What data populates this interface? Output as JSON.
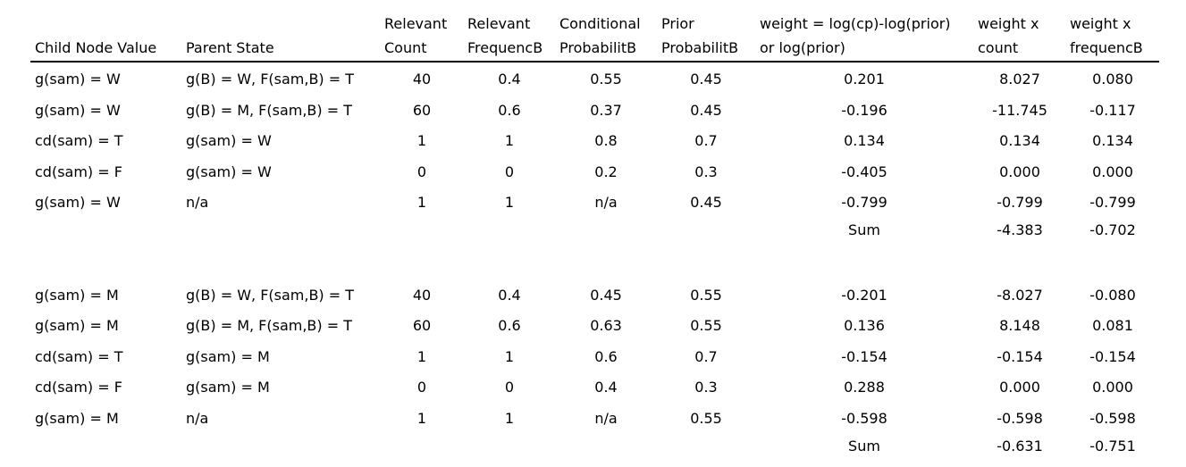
{
  "headers": {
    "child": [
      "",
      "Child Node Value"
    ],
    "parent": [
      "",
      "Parent State"
    ],
    "count": [
      "Relevant",
      "Count"
    ],
    "freq": [
      "Relevant",
      "FrequencB"
    ],
    "cp": [
      "Conditional",
      "ProbabilitB"
    ],
    "prior": [
      "Prior",
      "ProbabilitB"
    ],
    "weight": [
      "weight = log(cp)-log(prior)",
      "or log(prior)"
    ],
    "wc": [
      "weight x",
      "count"
    ],
    "wf": [
      "weight x",
      "frequencB"
    ]
  },
  "rows": [
    {
      "child": "g(sam) = W",
      "parent": "g(B) = W, F(sam,B) = T",
      "count": "40",
      "freq": "0.4",
      "cp": "0.55",
      "prior": "0.45",
      "weight": "0.201",
      "wc": "8.027",
      "wf": "0.080"
    },
    {
      "child": "g(sam) = W",
      "parent": "g(B) = M, F(sam,B) = T",
      "count": "60",
      "freq": "0.6",
      "cp": "0.37",
      "prior": "0.45",
      "weight": "-0.196",
      "wc": "-11.745",
      "wf": "-0.117"
    },
    {
      "child": "cd(sam) = T",
      "parent": "g(sam) = W",
      "count": "1",
      "freq": "1",
      "cp": "0.8",
      "prior": "0.7",
      "weight": "0.134",
      "wc": "0.134",
      "wf": "0.134"
    },
    {
      "child": "cd(sam) = F",
      "parent": "g(sam) = W",
      "count": "0",
      "freq": "0",
      "cp": "0.2",
      "prior": "0.3",
      "weight": "-0.405",
      "wc": "0.000",
      "wf": "0.000"
    },
    {
      "child": "g(sam) = W",
      "parent": "n/a",
      "count": "1",
      "freq": "1",
      "cp": "n/a",
      "prior": "0.45",
      "weight": "-0.799",
      "wc": "-0.799",
      "wf": "-0.799"
    },
    {
      "child": "",
      "parent": "",
      "count": "",
      "freq": "",
      "cp": "",
      "prior": "",
      "weight": "Sum",
      "wc": "-4.383",
      "wf": "-0.702"
    },
    {
      "child": "",
      "parent": "",
      "count": "",
      "freq": "",
      "cp": "",
      "prior": "",
      "weight": "",
      "wc": "",
      "wf": ""
    },
    {
      "child": "g(sam) = M",
      "parent": "g(B) = W, F(sam,B) = T",
      "count": "40",
      "freq": "0.4",
      "cp": "0.45",
      "prior": "0.55",
      "weight": "-0.201",
      "wc": "-8.027",
      "wf": "-0.080"
    },
    {
      "child": "g(sam) = M",
      "parent": "g(B) = M, F(sam,B) = T",
      "count": "60",
      "freq": "0.6",
      "cp": "0.63",
      "prior": "0.55",
      "weight": "0.136",
      "wc": "8.148",
      "wf": "0.081"
    },
    {
      "child": "cd(sam) = T",
      "parent": "g(sam) = M",
      "count": "1",
      "freq": "1",
      "cp": "0.6",
      "prior": "0.7",
      "weight": "-0.154",
      "wc": "-0.154",
      "wf": "-0.154"
    },
    {
      "child": "cd(sam) = F",
      "parent": "g(sam) = M",
      "count": "0",
      "freq": "0",
      "cp": "0.4",
      "prior": "0.3",
      "weight": "0.288",
      "wc": "0.000",
      "wf": "0.000"
    },
    {
      "child": "g(sam) = M",
      "parent": "n/a",
      "count": "1",
      "freq": "1",
      "cp": "n/a",
      "prior": "0.55",
      "weight": "-0.598",
      "wc": "-0.598",
      "wf": "-0.598"
    },
    {
      "child": "",
      "parent": "",
      "count": "",
      "freq": "",
      "cp": "",
      "prior": "",
      "weight": "Sum",
      "wc": "-0.631",
      "wf": "-0.751"
    }
  ]
}
